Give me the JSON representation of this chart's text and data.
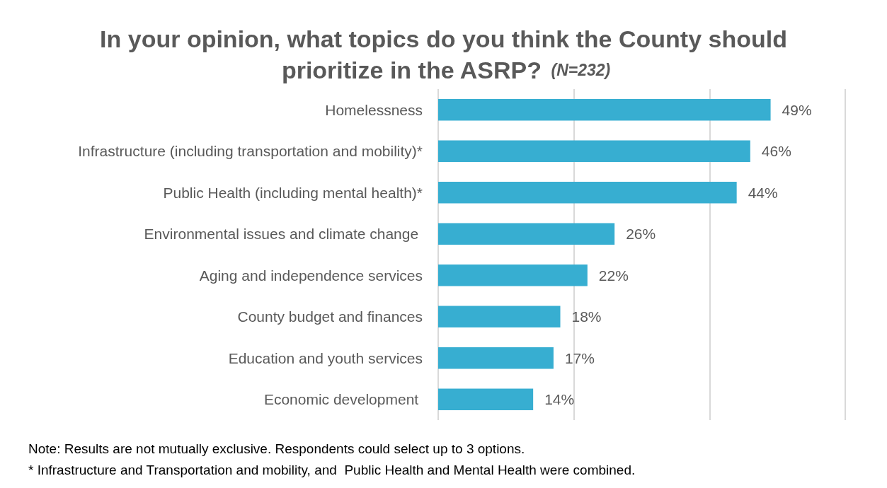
{
  "chart_data": {
    "type": "bar",
    "orientation": "horizontal",
    "title": "In your opinion, what topics do you think the County should prioritize in the ASRP?",
    "subtitle": "(N=232)",
    "categories": [
      "Homelessness",
      "Infrastructure (including transportation and mobility)*",
      "Public Health (including mental health)*",
      "Environmental issues and climate change ",
      "Aging and independence services",
      "County budget and finances",
      "Education and youth services",
      "Economic development "
    ],
    "values": [
      49,
      46,
      44,
      26,
      22,
      18,
      17,
      14
    ],
    "value_labels": [
      "49%",
      "46%",
      "44%",
      "26%",
      "22%",
      "18%",
      "17%",
      "14%"
    ],
    "color": "#37aed1",
    "xlim": [
      0,
      60
    ],
    "xticks": [
      {
        "value": 0,
        "label": null
      },
      {
        "value": 20,
        "label": null
      },
      {
        "value": 40,
        "label": null
      },
      {
        "value": 60,
        "label": null
      }
    ],
    "grid": "x",
    "tick_labels": "y",
    "annotations": [
      "Note: Results are not mutually exclusive. Respondents could select up to 3 options.",
      "* Infrastructure and Transportation and mobility, and  Public Health and Mental Health were combined."
    ]
  }
}
